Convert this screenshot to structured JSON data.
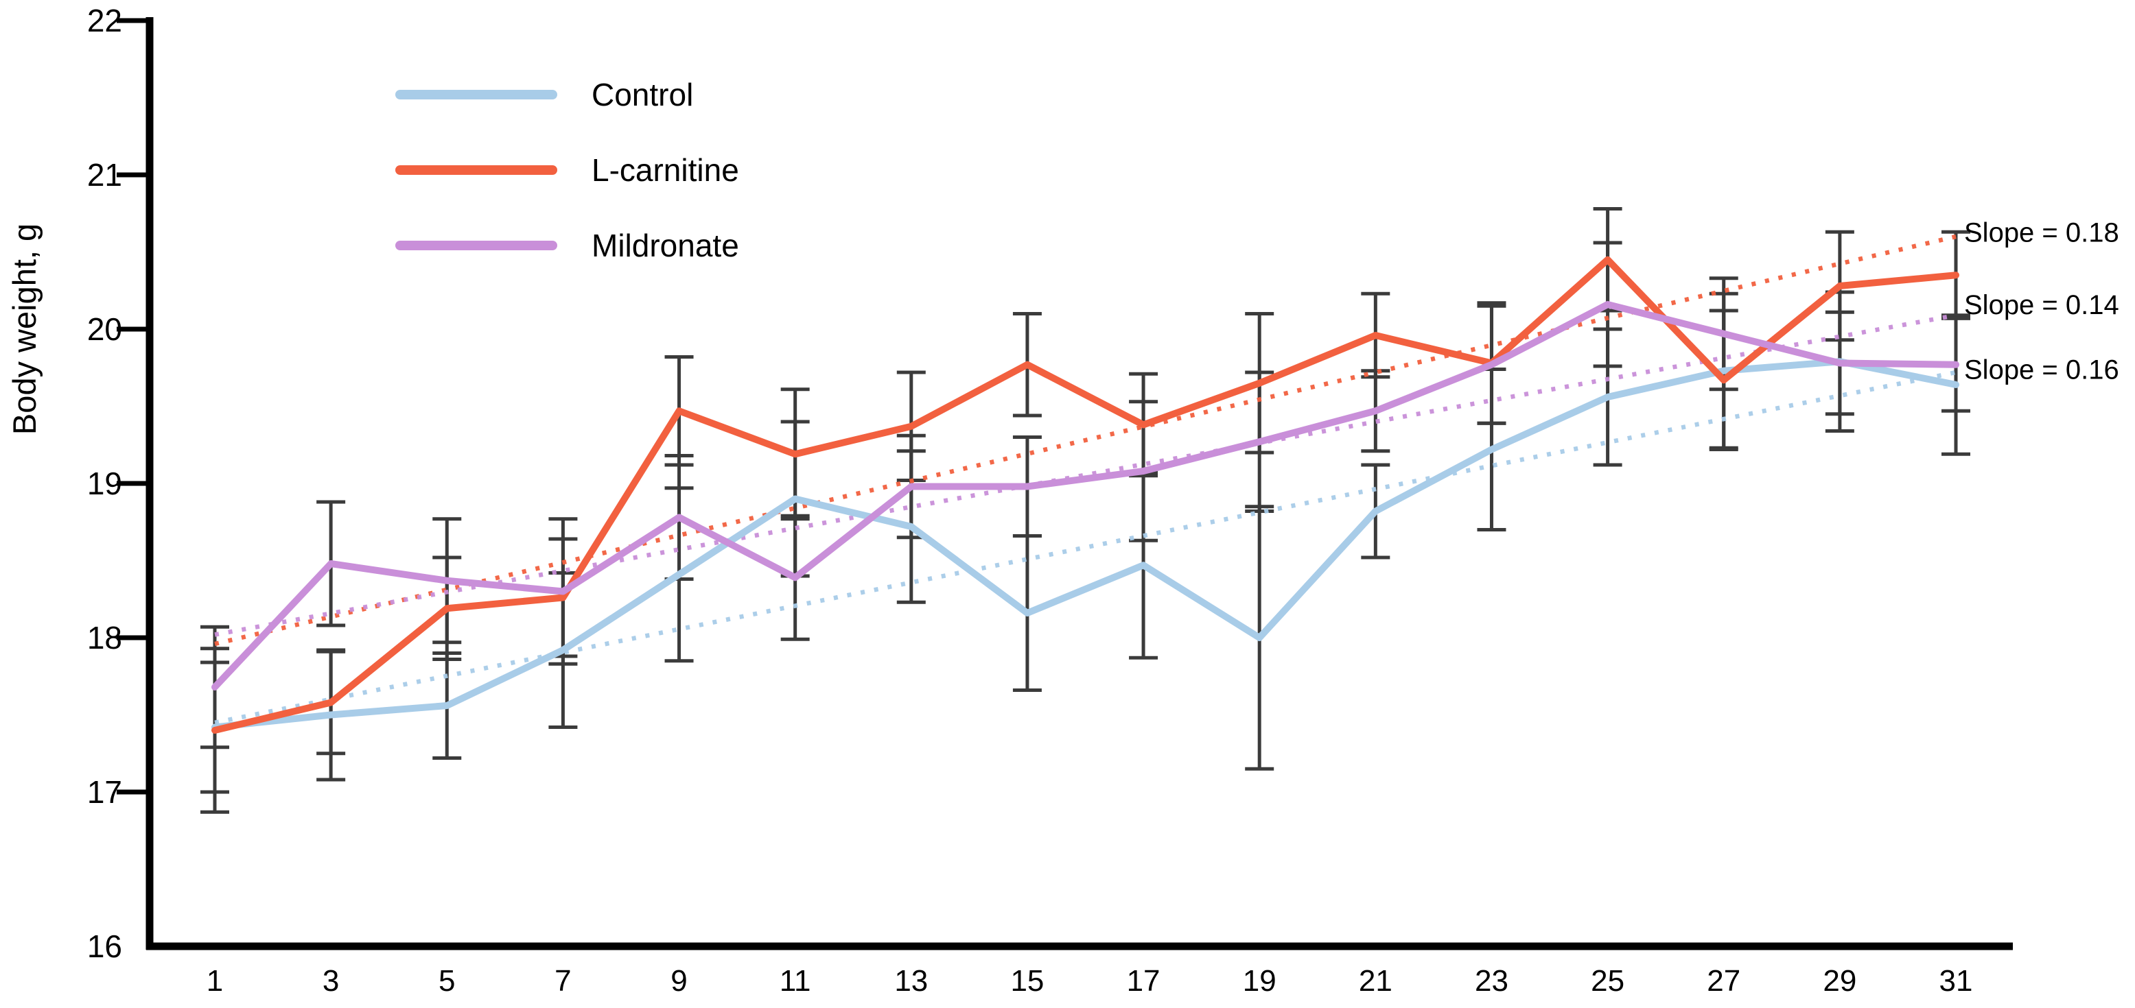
{
  "figure": {
    "background": "#ffffff"
  },
  "legend": {
    "position": "top-left-inside",
    "items": [
      {
        "label": "Control",
        "color": "#a8cce8"
      },
      {
        "label": "L-carnitine",
        "color": "#f2603f"
      },
      {
        "label": "Mildronate",
        "color": "#c98fd9"
      }
    ]
  },
  "chart_data": {
    "type": "line",
    "title": "",
    "xlabel": "",
    "ylabel": "Body weight, g",
    "x": [
      1,
      3,
      5,
      7,
      9,
      11,
      13,
      15,
      17,
      19,
      21,
      23,
      25,
      27,
      29,
      31
    ],
    "ylim": [
      16,
      22
    ],
    "yticks": [
      16,
      17,
      18,
      19,
      20,
      21,
      22
    ],
    "grid": false,
    "error_bar_color": "#3b3b3b",
    "axis_color": "#000000",
    "series": [
      {
        "name": "Control",
        "color": "#a8cce8",
        "values": [
          17.42,
          17.5,
          17.56,
          17.92,
          18.41,
          18.9,
          18.72,
          18.16,
          18.47,
          18.0,
          18.82,
          19.22,
          19.56,
          19.73,
          19.79,
          19.64
        ],
        "errors": [
          0.42,
          0.42,
          0.34,
          0.5,
          0.56,
          0.5,
          0.49,
          0.5,
          0.6,
          0.85,
          0.3,
          0.52,
          0.44,
          0.5,
          0.45,
          0.45
        ],
        "trend": {
          "start": 17.45,
          "end": 19.72,
          "slope": 0.16
        }
      },
      {
        "name": "L-carnitine",
        "color": "#f2603f",
        "values": [
          17.4,
          17.58,
          18.19,
          18.26,
          19.47,
          19.19,
          19.37,
          19.77,
          19.38,
          19.65,
          19.96,
          19.78,
          20.45,
          19.67,
          20.28,
          20.35
        ],
        "errors": [
          0.53,
          0.33,
          0.33,
          0.38,
          0.35,
          0.42,
          0.35,
          0.33,
          0.33,
          0.45,
          0.27,
          0.39,
          0.33,
          0.45,
          0.35,
          0.28
        ],
        "trend": {
          "start": 17.96,
          "end": 20.6,
          "slope": 0.18
        }
      },
      {
        "name": "Mildronate",
        "color": "#c98fd9",
        "values": [
          17.68,
          18.48,
          18.37,
          18.3,
          18.78,
          18.39,
          18.98,
          18.98,
          19.08,
          19.27,
          19.47,
          19.77,
          20.16,
          19.97,
          19.78,
          19.77
        ],
        "errors": [
          0.39,
          0.4,
          0.4,
          0.47,
          0.4,
          0.4,
          0.33,
          0.32,
          0.45,
          0.45,
          0.26,
          0.38,
          0.4,
          0.36,
          0.33,
          0.3
        ],
        "trend": {
          "start": 18.02,
          "end": 20.09,
          "slope": 0.14
        }
      }
    ]
  },
  "annotations": {
    "slope_labels": [
      {
        "text": "Slope = 0.18",
        "y": 20.63
      },
      {
        "text": "Slope = 0.14",
        "y": 20.16
      },
      {
        "text": "Slope = 0.16",
        "y": 19.74
      }
    ]
  }
}
